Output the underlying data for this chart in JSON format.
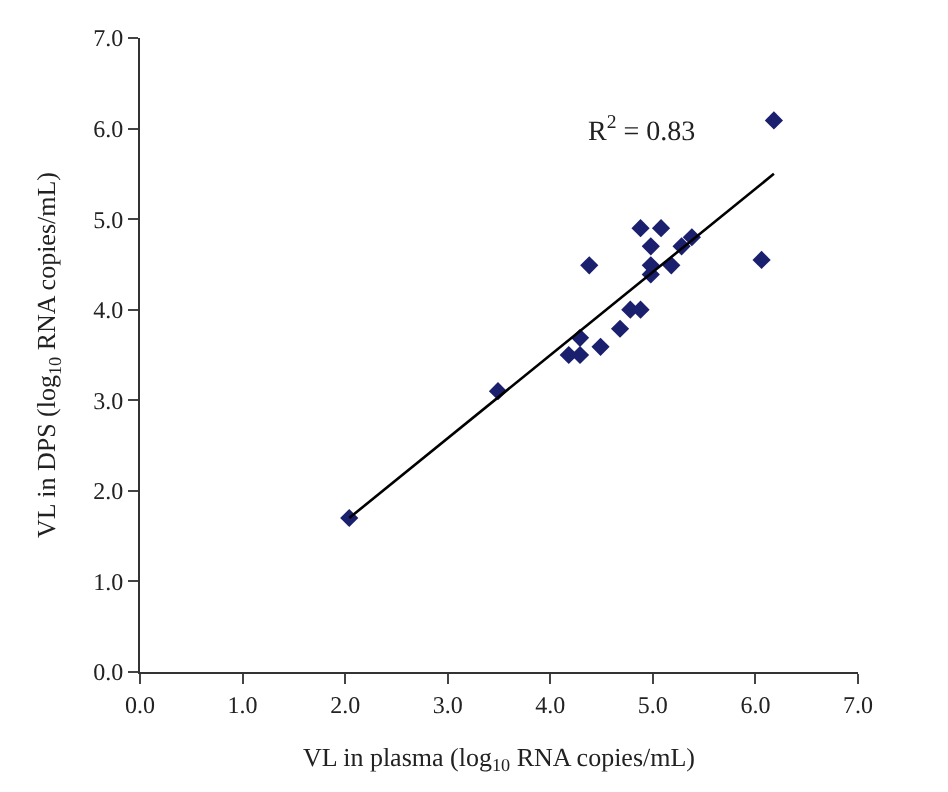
{
  "chart_data": {
    "type": "scatter",
    "xlabel": "VL in plasma (log$_{10}$ RNA copies/mL)",
    "ylabel": "VL in DPS (log$_{10}$ RNA copies/mL)",
    "annotations": [
      "R$^{2}$ = 0.83"
    ],
    "xlim": [
      0,
      7
    ],
    "ylim": [
      0,
      7
    ],
    "xticks": [
      {
        "value": 0,
        "label": "0.0"
      },
      {
        "value": 1,
        "label": "1.0"
      },
      {
        "value": 2,
        "label": "2.0"
      },
      {
        "value": 3,
        "label": "3.0"
      },
      {
        "value": 4,
        "label": "4.0"
      },
      {
        "value": 5,
        "label": "5.0"
      },
      {
        "value": 6,
        "label": "6.0"
      },
      {
        "value": 7,
        "label": "7.0"
      }
    ],
    "yticks": [
      {
        "value": 0,
        "label": "0.0"
      },
      {
        "value": 1,
        "label": "1.0"
      },
      {
        "value": 2,
        "label": "2.0"
      },
      {
        "value": 3,
        "label": "3.0"
      },
      {
        "value": 4,
        "label": "4.0"
      },
      {
        "value": 5,
        "label": "5.0"
      },
      {
        "value": 6,
        "label": "6.0"
      },
      {
        "value": 7,
        "label": "7.0"
      }
    ],
    "series": [
      {
        "marker": "diamond",
        "color": "#1a1f6e",
        "x": [
          2.04,
          3.49,
          4.18,
          4.29,
          4.29,
          4.38,
          4.49,
          4.68,
          4.78,
          4.88,
          4.88,
          4.98,
          4.98,
          4.98,
          5.08,
          5.18,
          5.28,
          5.38,
          6.06,
          6.18
        ],
        "values": [
          1.7,
          3.1,
          3.5,
          3.5,
          3.69,
          4.49,
          3.59,
          3.79,
          4.0,
          4.0,
          4.9,
          4.7,
          4.49,
          4.39,
          4.9,
          4.49,
          4.7,
          4.8,
          4.55,
          6.09
        ]
      },
      {
        "type": "line",
        "color": "#000000",
        "x": [
          2.04,
          6.18
        ],
        "values": [
          1.7,
          5.5
        ]
      }
    ]
  }
}
